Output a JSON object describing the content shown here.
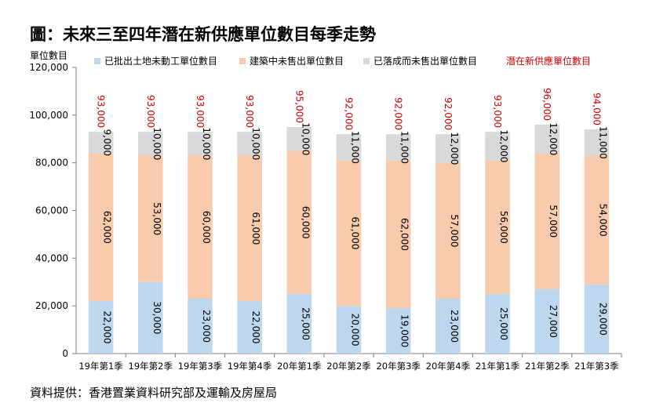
{
  "title": "圖：未來三至四年潛在新供應單位數目每季走勢",
  "source": "資料提供：香港置業資料研究部及運輸及房屋局",
  "colors": {
    "series": [
      "#bdd7ee",
      "#f8cbad",
      "#d9d9d9"
    ],
    "total": "#cc0000",
    "axis": "#7f7f7f"
  },
  "chart_data": {
    "type": "bar",
    "stacked": true,
    "ylabel": "單位數目",
    "ylim": [
      0,
      120000
    ],
    "yticks": [
      "0",
      "20,000",
      "40,000",
      "60,000",
      "80,000",
      "100,000",
      "120,000"
    ],
    "categories": [
      "19年第1季",
      "19年第2季",
      "19年第3季",
      "19年第4季",
      "20年第1季",
      "20年第2季",
      "20年第3季",
      "20年第4季",
      "21年第1季",
      "21年第2季",
      "21年第3季"
    ],
    "series": [
      {
        "name": "已批出土地未動工單位數目",
        "values": [
          22000,
          30000,
          23000,
          22000,
          25000,
          20000,
          19000,
          23000,
          25000,
          27000,
          29000
        ],
        "labels": [
          "22,000",
          "30,000",
          "23,000",
          "22,000",
          "25,000",
          "20,000",
          "19,000",
          "23,000",
          "25,000",
          "27,000",
          "29,000"
        ]
      },
      {
        "name": "建築中未售出單位數目",
        "values": [
          62000,
          53000,
          60000,
          61000,
          60000,
          61000,
          62000,
          57000,
          56000,
          57000,
          54000
        ],
        "labels": [
          "62,000",
          "53,000",
          "60,000",
          "61,000",
          "60,000",
          "61,000",
          "62,000",
          "57,000",
          "56,000",
          "57,000",
          "54,000"
        ]
      },
      {
        "name": "已落成而未售出單位數目",
        "values": [
          9000,
          10000,
          10000,
          10000,
          10000,
          11000,
          11000,
          12000,
          12000,
          12000,
          11000
        ],
        "labels": [
          "9,000",
          "10,000",
          "10,000",
          "10,000",
          "10,000",
          "11,000",
          "11,000",
          "12,000",
          "12,000",
          "12,000",
          "11,000"
        ]
      }
    ],
    "totals": {
      "name": "潛在新供應單位數目",
      "values": [
        93000,
        93000,
        93000,
        93000,
        95000,
        92000,
        92000,
        92000,
        93000,
        96000,
        94000
      ],
      "labels": [
        "93,000",
        "93,000",
        "93,000",
        "93,000",
        "95,000",
        "92,000",
        "92,000",
        "92,000",
        "93,000",
        "96,000",
        "94,000"
      ]
    },
    "legend_position": "top",
    "grid": false
  }
}
